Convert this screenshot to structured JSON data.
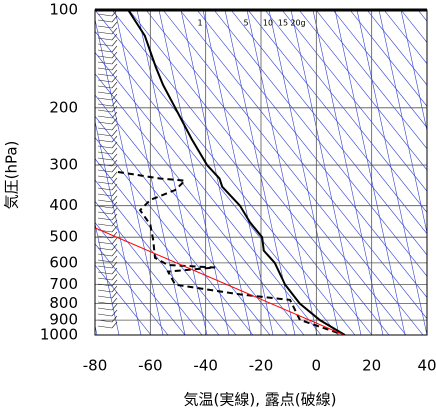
{
  "chart_data": {
    "type": "sounding",
    "xlabel": "気温(実線), 露点(破線)",
    "ylabel": "気圧(hPa)",
    "xlim": [
      -80,
      40
    ],
    "xticks": [
      -80,
      -60,
      -40,
      -20,
      0,
      20,
      40
    ],
    "ylim": [
      100,
      1000
    ],
    "yticks": [
      100,
      200,
      300,
      400,
      500,
      600,
      700,
      800,
      900,
      1000
    ],
    "ylog": true,
    "yreversed": true,
    "grid": true,
    "mixing_ratio_labels": [
      "1",
      "5",
      "10",
      "15",
      "20g"
    ],
    "series": [
      {
        "color": "#000000",
        "dashed": false,
        "x": [
          -68,
          -62,
          -58,
          -55.4,
          -51,
          -45,
          -39.5,
          -35,
          -34,
          -27.6,
          -24,
          -19.6,
          -19,
          -15,
          -11.3,
          -6,
          1.3,
          10.3
        ],
        "values": [
          100,
          120,
          150,
          170,
          200,
          250,
          300,
          330,
          350,
          400,
          450,
          500,
          550,
          600,
          700,
          800,
          900,
          1000
        ]
      },
      {
        "color": "#000000",
        "dashed": true,
        "x": [
          -71.7,
          -56.5,
          -47.5,
          -51,
          -60,
          -63.7,
          -60,
          -59,
          -58.3,
          -53.6,
          -36.6,
          -53.6,
          -51,
          -27.6,
          -9.5,
          -5.9,
          -4,
          10
        ],
        "values": [
          315,
          330,
          335,
          358,
          384,
          413,
          458,
          508,
          579,
          609,
          620,
          638,
          700,
          750,
          780,
          900,
          910,
          1000
        ]
      },
      {
        "color": "#ff0000",
        "dashed": false,
        "x": [
          -80,
          10
        ],
        "values": [
          468,
          1000
        ]
      }
    ]
  }
}
